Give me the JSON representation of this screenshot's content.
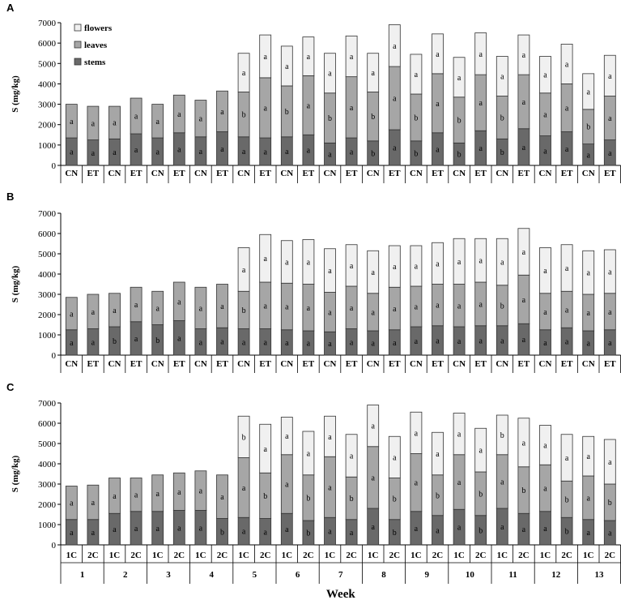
{
  "legend": [
    {
      "name": "flowers",
      "color": "#f0f0f0"
    },
    {
      "name": "leaves",
      "color": "#a6a6a6"
    },
    {
      "name": "stems",
      "color": "#696969"
    }
  ],
  "x_title": "Week",
  "weeks": [
    "1",
    "2",
    "3",
    "4",
    "5",
    "6",
    "7",
    "8",
    "9",
    "10",
    "11",
    "12",
    "13"
  ],
  "chart_data": [
    {
      "type": "bar",
      "stacked": true,
      "panel": "A",
      "ylabel": "S (mg/kg)",
      "ylim": [
        0,
        7000
      ],
      "yticks": [
        0,
        1000,
        2000,
        3000,
        4000,
        5000,
        6000,
        7000
      ],
      "categories": [
        "CN",
        "ET",
        "CN",
        "ET",
        "CN",
        "ET",
        "CN",
        "ET",
        "CN",
        "ET",
        "CN",
        "ET",
        "CN",
        "ET",
        "CN",
        "ET",
        "CN",
        "ET",
        "CN",
        "ET",
        "CN",
        "ET",
        "CN",
        "ET",
        "CN",
        "ET"
      ],
      "series": [
        {
          "name": "stems",
          "values": [
            1350,
            1250,
            1300,
            1550,
            1350,
            1600,
            1400,
            1650,
            1400,
            1350,
            1400,
            1500,
            1100,
            1350,
            1200,
            1750,
            1200,
            1600,
            1100,
            1700,
            1300,
            1800,
            1450,
            1650,
            1050,
            1250
          ],
          "labels": [
            "a",
            "a",
            "a",
            "a",
            "a",
            "a",
            "a",
            "a",
            "a",
            "a",
            "a",
            "a",
            "a",
            "a",
            "b",
            "a",
            "b",
            "a",
            "b",
            "a",
            "b",
            "a",
            "a",
            "a",
            "a",
            "a"
          ]
        },
        {
          "name": "leaves",
          "values": [
            1650,
            1650,
            1600,
            1750,
            1650,
            1850,
            1800,
            2000,
            2200,
            2950,
            2500,
            2900,
            2450,
            3000,
            2400,
            3100,
            2300,
            2900,
            2250,
            2750,
            2100,
            2650,
            2100,
            2350,
            1700,
            2150
          ],
          "labels": [
            "a",
            "a",
            "a",
            "a",
            "a",
            "a",
            "a",
            "a",
            "b",
            "a",
            "b",
            "a",
            "b",
            "a",
            "b",
            "a",
            "b",
            "a",
            "b",
            "a",
            "b",
            "a",
            "a",
            "a",
            "b",
            "a"
          ]
        },
        {
          "name": "flowers",
          "values": [
            0,
            0,
            0,
            0,
            0,
            0,
            0,
            0,
            1900,
            2100,
            1950,
            1900,
            1950,
            2000,
            1900,
            2050,
            1950,
            1950,
            1950,
            2050,
            1950,
            1950,
            1800,
            1950,
            1750,
            2000
          ],
          "labels": [
            "",
            "",
            "",
            "",
            "",
            "",
            "",
            "",
            "a",
            "a",
            "a",
            "a",
            "a",
            "a",
            "a",
            "a",
            "a",
            "a",
            "a",
            "a",
            "a",
            "a",
            "a",
            "a",
            "a",
            "a"
          ]
        }
      ]
    },
    {
      "type": "bar",
      "stacked": true,
      "panel": "B",
      "ylabel": "S (mg/kg)",
      "ylim": [
        0,
        7000
      ],
      "yticks": [
        0,
        1000,
        2000,
        3000,
        4000,
        5000,
        6000,
        7000
      ],
      "categories": [
        "CN",
        "ET",
        "CN",
        "ET",
        "CN",
        "ET",
        "CN",
        "ET",
        "CN",
        "ET",
        "CN",
        "ET",
        "CN",
        "ET",
        "CN",
        "ET",
        "CN",
        "ET",
        "CN",
        "ET",
        "CN",
        "ET",
        "CN",
        "ET",
        "CN",
        "ET"
      ],
      "series": [
        {
          "name": "stems",
          "values": [
            1250,
            1300,
            1400,
            1650,
            1500,
            1700,
            1300,
            1350,
            1300,
            1300,
            1250,
            1200,
            1150,
            1300,
            1200,
            1250,
            1400,
            1450,
            1400,
            1450,
            1450,
            1550,
            1250,
            1350,
            1200,
            1250
          ],
          "labels": [
            "a",
            "a",
            "b",
            "a",
            "b",
            "a",
            "a",
            "a",
            "a",
            "a",
            "a",
            "a",
            "a",
            "a",
            "a",
            "a",
            "a",
            "a",
            "a",
            "a",
            "a",
            "a",
            "a",
            "a",
            "a",
            "a"
          ]
        },
        {
          "name": "leaves",
          "values": [
            1600,
            1700,
            1650,
            1700,
            1650,
            1900,
            2050,
            2150,
            1850,
            2300,
            2300,
            2300,
            1950,
            2100,
            1850,
            2100,
            2000,
            2050,
            2100,
            2150,
            2000,
            2400,
            1800,
            1800,
            1800,
            1800
          ],
          "labels": [
            "a",
            "a",
            "a",
            "a",
            "a",
            "a",
            "a",
            "a",
            "b",
            "a",
            "a",
            "a",
            "a",
            "a",
            "a",
            "a",
            "a",
            "a",
            "a",
            "a",
            "b",
            "a",
            "a",
            "a",
            "a",
            "a"
          ]
        },
        {
          "name": "flowers",
          "values": [
            0,
            0,
            0,
            0,
            0,
            0,
            0,
            0,
            2150,
            2350,
            2100,
            2200,
            2150,
            2050,
            2100,
            2050,
            2000,
            2050,
            2250,
            2150,
            2300,
            2300,
            2250,
            2300,
            2150,
            2150
          ],
          "labels": [
            "",
            "",
            "",
            "",
            "",
            "",
            "",
            "",
            "a",
            "a",
            "a",
            "a",
            "a",
            "a",
            "a",
            "a",
            "a",
            "a",
            "a",
            "a",
            "a",
            "a",
            "a",
            "a",
            "a",
            "a"
          ]
        }
      ]
    },
    {
      "type": "bar",
      "stacked": true,
      "panel": "C",
      "ylabel": "S (mg/kg)",
      "ylim": [
        0,
        7000
      ],
      "yticks": [
        0,
        1000,
        2000,
        3000,
        4000,
        5000,
        6000,
        7000
      ],
      "categories": [
        "1C",
        "2C",
        "1C",
        "2C",
        "1C",
        "2C",
        "1C",
        "2C",
        "1C",
        "2C",
        "1C",
        "2C",
        "1C",
        "2C",
        "1C",
        "2C",
        "1C",
        "2C",
        "1C",
        "2C",
        "1C",
        "2C",
        "1C",
        "2C",
        "1C",
        "2C"
      ],
      "series": [
        {
          "name": "stems",
          "values": [
            1250,
            1250,
            1550,
            1650,
            1650,
            1700,
            1700,
            1300,
            1350,
            1300,
            1550,
            1200,
            1350,
            1250,
            1800,
            1250,
            1650,
            1450,
            1750,
            1450,
            1800,
            1550,
            1650,
            1350,
            1250,
            1200
          ],
          "labels": [
            "a",
            "a",
            "a",
            "a",
            "a",
            "a",
            "a",
            "b",
            "a",
            "a",
            "a",
            "b",
            "a",
            "a",
            "a",
            "b",
            "a",
            "a",
            "a",
            "b",
            "a",
            "a",
            "a",
            "b",
            "a",
            "a"
          ]
        },
        {
          "name": "leaves",
          "values": [
            1650,
            1700,
            1750,
            1650,
            1800,
            1850,
            1950,
            2150,
            2950,
            2250,
            2900,
            2250,
            3000,
            2100,
            3050,
            2050,
            2850,
            2000,
            2700,
            2150,
            2650,
            2300,
            2300,
            1800,
            2150,
            1800
          ],
          "labels": [
            "a",
            "a",
            "a",
            "a",
            "a",
            "a",
            "a",
            "a",
            "a",
            "b",
            "a",
            "b",
            "a",
            "b",
            "a",
            "b",
            "a",
            "b",
            "a",
            "b",
            "a",
            "b",
            "a",
            "b",
            "a",
            "b"
          ]
        },
        {
          "name": "flowers",
          "values": [
            0,
            0,
            0,
            0,
            0,
            0,
            0,
            0,
            2050,
            2400,
            1850,
            2150,
            2000,
            2100,
            2050,
            2050,
            2050,
            2100,
            2050,
            2150,
            1950,
            2400,
            1950,
            2300,
            1950,
            2200
          ],
          "labels": [
            "",
            "",
            "",
            "",
            "",
            "",
            "",
            "",
            "b",
            "a",
            "a",
            "a",
            "a",
            "a",
            "a",
            "a",
            "a",
            "a",
            "a",
            "a",
            "b",
            "a",
            "a",
            "a",
            "a",
            "a"
          ]
        }
      ]
    }
  ]
}
